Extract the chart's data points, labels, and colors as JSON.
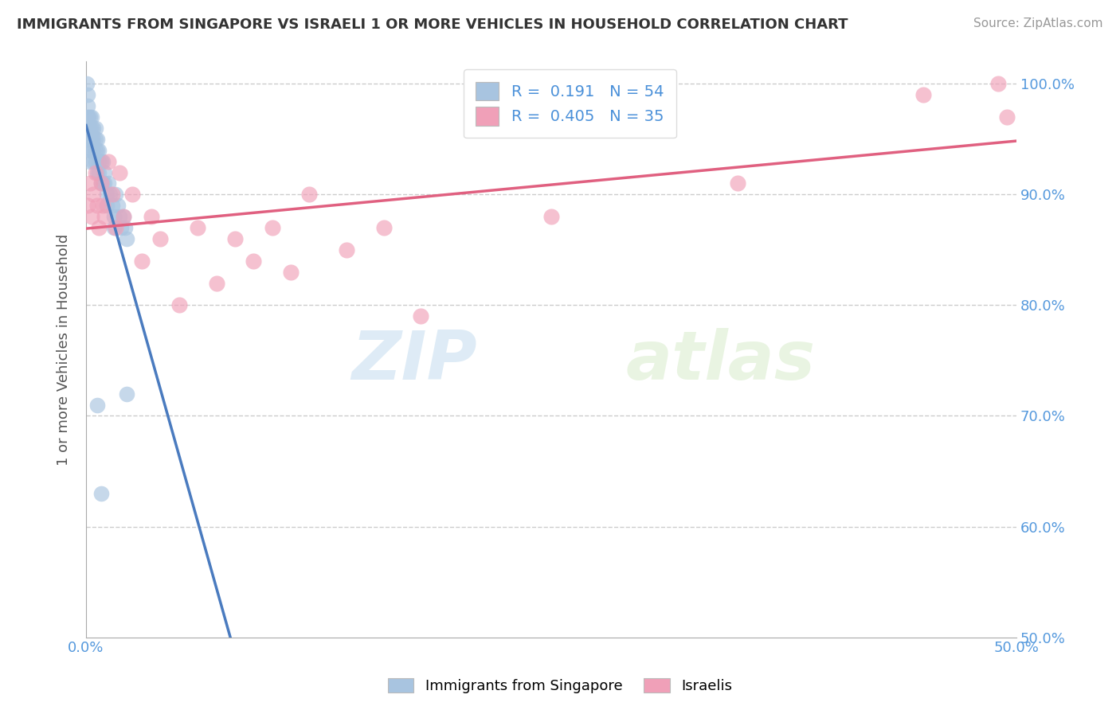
{
  "title": "IMMIGRANTS FROM SINGAPORE VS ISRAELI 1 OR MORE VEHICLES IN HOUSEHOLD CORRELATION CHART",
  "source": "Source: ZipAtlas.com",
  "ylabel": "1 or more Vehicles in Household",
  "xlabel": "",
  "legend_label1": "Immigrants from Singapore",
  "legend_label2": "Israelis",
  "R1": 0.191,
  "N1": 54,
  "R2": 0.405,
  "N2": 35,
  "xlim": [
    0.0,
    0.5
  ],
  "ylim": [
    0.5,
    1.02
  ],
  "color1": "#a8c4e0",
  "color2": "#f0a0b8",
  "trendline1_color": "#4a7bbf",
  "trendline2_color": "#e06080",
  "singapore_x": [
    0.0005,
    0.0008,
    0.001,
    0.001,
    0.001,
    0.001,
    0.0015,
    0.0015,
    0.002,
    0.002,
    0.002,
    0.002,
    0.002,
    0.003,
    0.003,
    0.003,
    0.003,
    0.004,
    0.004,
    0.004,
    0.004,
    0.005,
    0.005,
    0.005,
    0.005,
    0.006,
    0.006,
    0.006,
    0.007,
    0.007,
    0.007,
    0.008,
    0.008,
    0.009,
    0.009,
    0.01,
    0.01,
    0.011,
    0.011,
    0.012,
    0.013,
    0.014,
    0.015,
    0.015,
    0.016,
    0.017,
    0.018,
    0.019,
    0.02,
    0.021,
    0.022,
    0.022,
    0.006,
    0.008
  ],
  "singapore_y": [
    1.0,
    0.99,
    0.98,
    0.97,
    0.96,
    0.95,
    0.97,
    0.96,
    0.97,
    0.96,
    0.95,
    0.94,
    0.93,
    0.97,
    0.96,
    0.95,
    0.94,
    0.96,
    0.95,
    0.94,
    0.93,
    0.96,
    0.95,
    0.94,
    0.93,
    0.95,
    0.94,
    0.92,
    0.94,
    0.93,
    0.92,
    0.93,
    0.91,
    0.93,
    0.91,
    0.92,
    0.91,
    0.9,
    0.89,
    0.91,
    0.9,
    0.89,
    0.88,
    0.87,
    0.9,
    0.89,
    0.88,
    0.87,
    0.88,
    0.87,
    0.86,
    0.72,
    0.71,
    0.63
  ],
  "israel_x": [
    0.001,
    0.002,
    0.003,
    0.004,
    0.005,
    0.006,
    0.007,
    0.008,
    0.009,
    0.01,
    0.012,
    0.014,
    0.016,
    0.018,
    0.02,
    0.025,
    0.03,
    0.035,
    0.04,
    0.05,
    0.06,
    0.07,
    0.08,
    0.09,
    0.1,
    0.11,
    0.12,
    0.14,
    0.16,
    0.18,
    0.25,
    0.35,
    0.45,
    0.49,
    0.495
  ],
  "israel_y": [
    0.89,
    0.91,
    0.88,
    0.9,
    0.92,
    0.89,
    0.87,
    0.91,
    0.89,
    0.88,
    0.93,
    0.9,
    0.87,
    0.92,
    0.88,
    0.9,
    0.84,
    0.88,
    0.86,
    0.8,
    0.87,
    0.82,
    0.86,
    0.84,
    0.87,
    0.83,
    0.9,
    0.85,
    0.87,
    0.79,
    0.88,
    0.91,
    0.99,
    1.0,
    0.97
  ],
  "watermark_zip": "ZIP",
  "watermark_atlas": "atlas",
  "background_color": "#ffffff",
  "grid_color": "#cccccc"
}
